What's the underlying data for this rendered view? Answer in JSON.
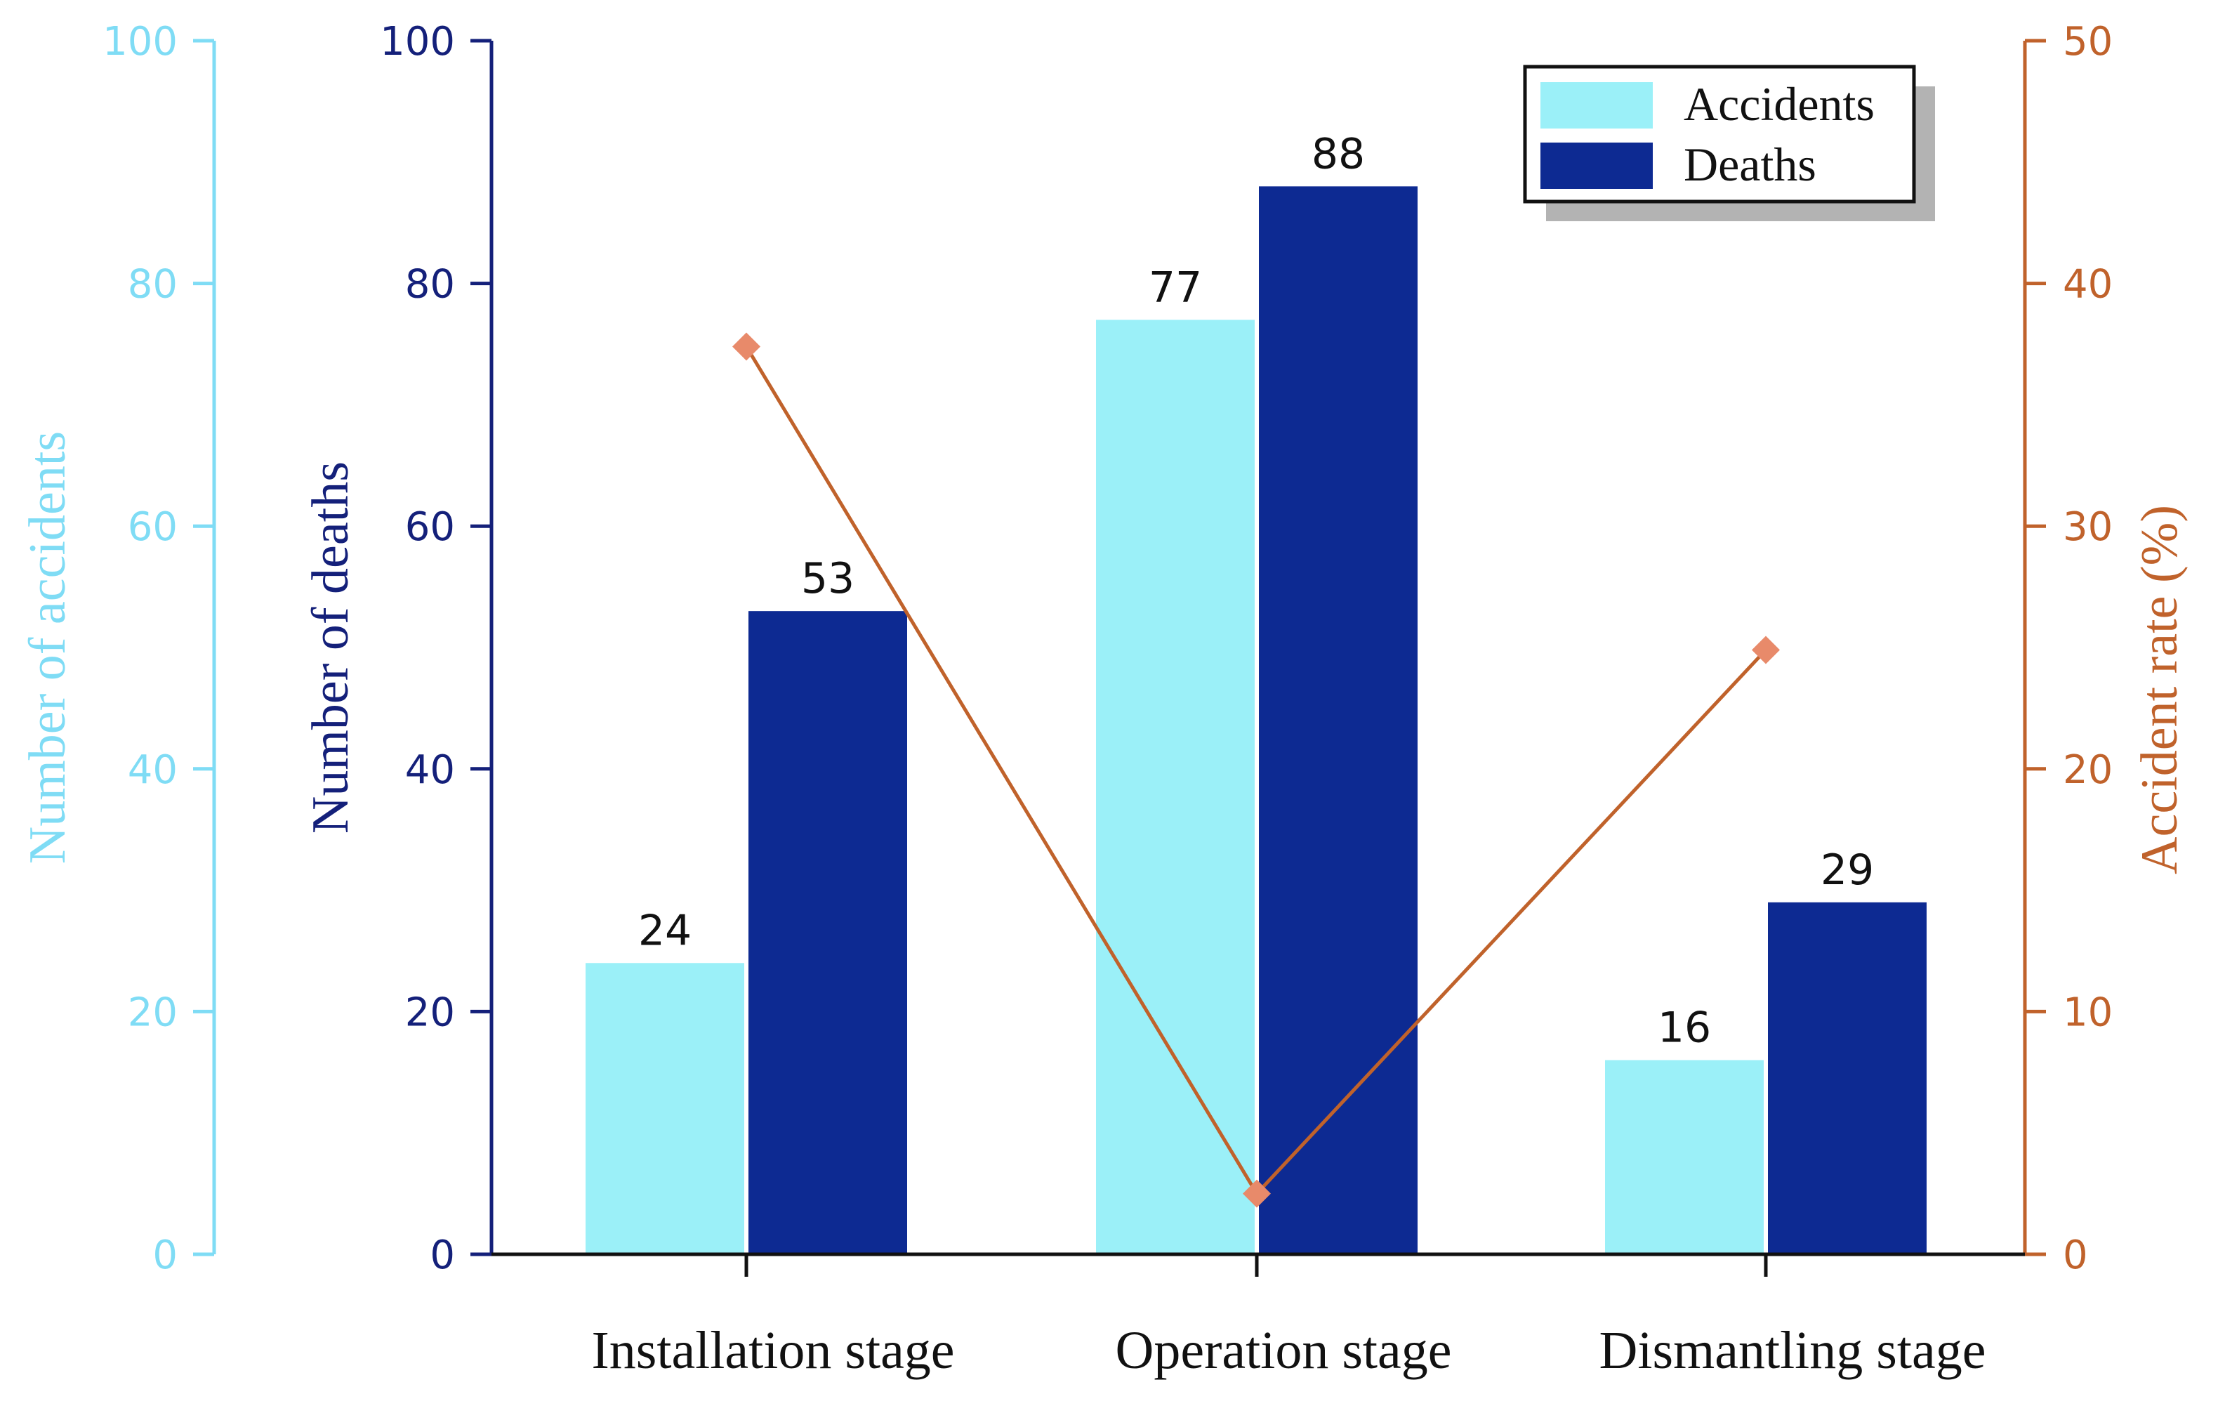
{
  "chart_data": {
    "type": "bar",
    "categories": [
      "Installation stage",
      "Operation stage",
      "Dismantling stage"
    ],
    "series": [
      {
        "name": "Accidents",
        "axis": "accidents",
        "values": [
          24,
          77,
          16
        ],
        "color": "#9bf0f8"
      },
      {
        "name": "Deaths",
        "axis": "deaths",
        "values": [
          53,
          88,
          29
        ],
        "color": "#0d2a92"
      }
    ],
    "line_series": {
      "name": "Accident rate",
      "axis": "rate",
      "values": [
        37.4,
        2.5,
        24.9
      ],
      "color": "#c0622b",
      "marker_color": "#e88a6a"
    },
    "axes": {
      "accidents": {
        "label": "Number of accidents",
        "ylim": [
          0,
          100
        ],
        "ticks": [
          "0",
          "20",
          "40",
          "60",
          "80",
          "100"
        ],
        "color": "#7fdcf5"
      },
      "deaths": {
        "label": "Number of deaths",
        "ylim": [
          0,
          100
        ],
        "ticks": [
          "0",
          "20",
          "40",
          "60",
          "80",
          "100"
        ],
        "color": "#14207a"
      },
      "rate": {
        "label": "Accident rate (%)",
        "ylim": [
          0,
          50
        ],
        "ticks": [
          "0",
          "10",
          "20",
          "30",
          "40",
          "50"
        ],
        "color": "#c0622b"
      }
    },
    "legend": {
      "position": "top-right",
      "entries": [
        "Accidents",
        "Deaths"
      ]
    },
    "data_labels": {
      "Accidents": [
        "24",
        "77",
        "16"
      ],
      "Deaths": [
        "53",
        "88",
        "29"
      ]
    }
  }
}
